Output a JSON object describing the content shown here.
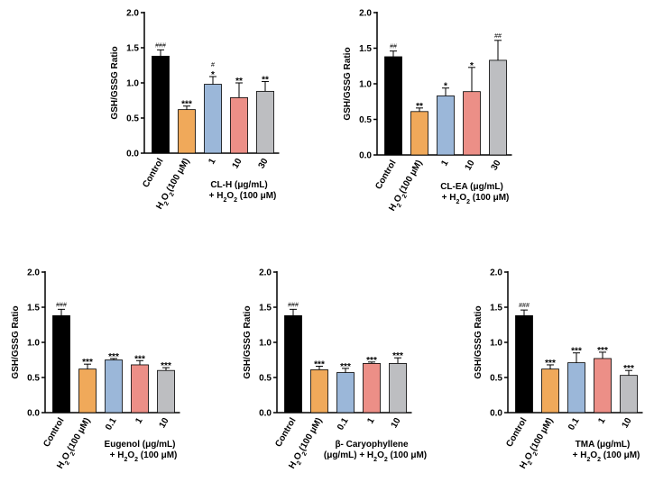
{
  "colors": {
    "control": "#000000",
    "h2o2": "#F0A95A",
    "dose1": "#9BB7D9",
    "dose2": "#EC8F87",
    "dose3": "#BDBEC1"
  },
  "chart_data": [
    {
      "type": "bar",
      "ylabel": "GSH/GSSG Ratio",
      "ylim": [
        0,
        2.0
      ],
      "yticks": [
        "0.0",
        "0.5",
        "1.0",
        "1.5",
        "2.0"
      ],
      "categories": [
        "Control",
        "H2O2(100 μM)",
        "1",
        "10",
        "30"
      ],
      "values": [
        1.38,
        0.62,
        0.98,
        0.79,
        0.88
      ],
      "errors": [
        0.09,
        0.05,
        0.11,
        0.21,
        0.14
      ],
      "significance": [
        "###",
        "***",
        "*|#",
        "**",
        "**"
      ],
      "treatment_label": [
        "CL-H (μg/mL)",
        "+ H2O2 (100 μM)"
      ]
    },
    {
      "type": "bar",
      "ylabel": "GSH/GSSG Ratio",
      "ylim": [
        0,
        2.0
      ],
      "yticks": [
        "0.0",
        "0.5",
        "1.0",
        "1.5",
        "2.0"
      ],
      "categories": [
        "Control",
        "H2O2(100 μM)",
        "1",
        "10",
        "30"
      ],
      "values": [
        1.38,
        0.61,
        0.83,
        0.89,
        1.33
      ],
      "errors": [
        0.08,
        0.05,
        0.11,
        0.34,
        0.28
      ],
      "significance": [
        "##",
        "**",
        "*",
        "*",
        "##"
      ],
      "treatment_label": [
        "CL-EA (μg/mL)",
        "+ H2O2 (100 μM)"
      ]
    },
    {
      "type": "bar",
      "ylabel": "GSH/GSSG Ratio",
      "ylim": [
        0,
        2.0
      ],
      "yticks": [
        "0.0",
        "0.5",
        "1.0",
        "1.5",
        "2.0"
      ],
      "categories": [
        "Control",
        "H2O2(100 μM)",
        "0.1",
        "1",
        "10"
      ],
      "values": [
        1.38,
        0.62,
        0.75,
        0.68,
        0.6
      ],
      "errors": [
        0.09,
        0.07,
        0.02,
        0.06,
        0.04
      ],
      "significance": [
        "###",
        "***",
        "***",
        "***",
        "***"
      ],
      "treatment_label": [
        "Eugenol (μg/mL)",
        "+ H2O2 (100 μM)"
      ]
    },
    {
      "type": "bar",
      "ylabel": "GSH/GSSG Ratio",
      "ylim": [
        0,
        2.0
      ],
      "yticks": [
        "0.0",
        "0.5",
        "1.0",
        "1.5",
        "2.0"
      ],
      "categories": [
        "Control",
        "H2O2(100 μM)",
        "0.1",
        "1",
        "10"
      ],
      "values": [
        1.38,
        0.61,
        0.57,
        0.7,
        0.7
      ],
      "errors": [
        0.09,
        0.05,
        0.06,
        0.02,
        0.08
      ],
      "significance": [
        "###",
        "***",
        "***",
        "***",
        "***"
      ],
      "treatment_label": [
        "β- Caryophyllene",
        "(μg/mL) + H2O2 (100 μM)"
      ]
    },
    {
      "type": "bar",
      "ylabel": "GSH/GSSG Ratio",
      "ylim": [
        0,
        2.0
      ],
      "yticks": [
        "0.0",
        "0.5",
        "1.0",
        "1.5",
        "2.0"
      ],
      "categories": [
        "Control",
        "H2O2(100 μM)",
        "0.1",
        "1",
        "10"
      ],
      "values": [
        1.38,
        0.62,
        0.71,
        0.77,
        0.53
      ],
      "errors": [
        0.08,
        0.06,
        0.14,
        0.09,
        0.07
      ],
      "significance": [
        "###",
        "***",
        "***",
        "***",
        "***"
      ],
      "treatment_label": [
        "TMA (μg/mL)",
        "+ H2O2 (100 μM)"
      ]
    }
  ]
}
